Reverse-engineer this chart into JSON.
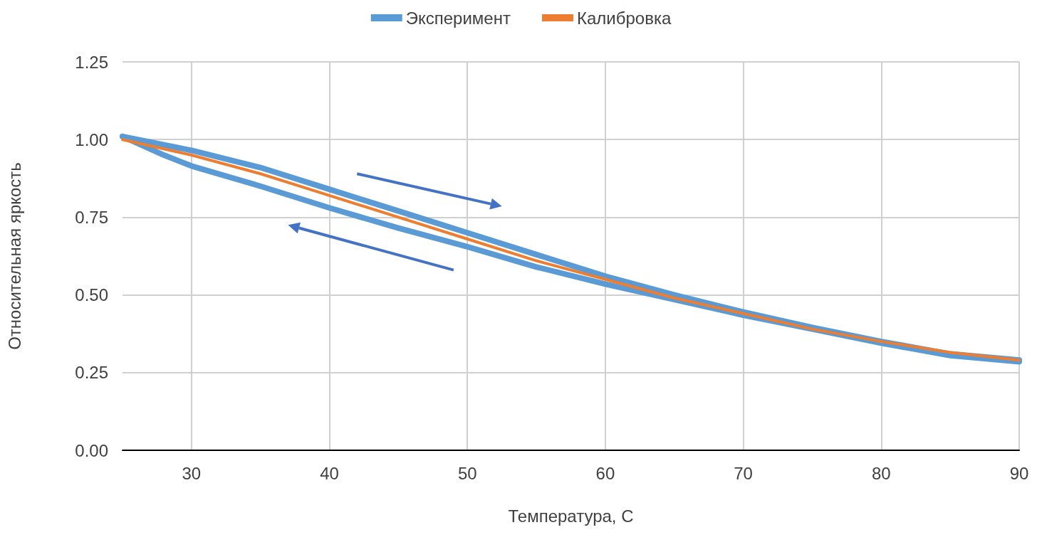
{
  "chart_data": {
    "type": "line",
    "xlabel": "Температура, С",
    "ylabel": "Относительная яркость",
    "xlim": [
      25,
      90
    ],
    "xticks": [
      30,
      40,
      50,
      60,
      70,
      80,
      90
    ],
    "ylim": [
      0,
      1.25
    ],
    "yticks": [
      {
        "value": 0,
        "label": "0.00"
      },
      {
        "value": 0.25,
        "label": "0.25"
      },
      {
        "value": 0.5,
        "label": "0.50"
      },
      {
        "value": 0.75,
        "label": "0.75"
      },
      {
        "value": 1,
        "label": "1.00"
      },
      {
        "value": 1.25,
        "label": "1.25"
      }
    ],
    "grid": true,
    "legend": "top",
    "marker": "none",
    "line_style": "solid",
    "series": [
      {
        "name": "Эксперимент",
        "color": "#5b9bd5",
        "x": [
          25,
          30,
          35,
          40,
          45,
          50,
          55,
          60,
          65,
          70,
          75,
          80,
          85,
          90
        ],
        "values": [
          1.01,
          0.965,
          0.91,
          0.84,
          0.77,
          0.7,
          0.63,
          0.56,
          0.5,
          0.445,
          0.395,
          0.35,
          0.31,
          0.29
        ]
      },
      {
        "color": "#5b9bd5",
        "x": [
          25,
          28,
          30,
          35,
          40,
          45,
          50,
          55,
          60,
          65,
          70,
          75,
          80,
          85,
          90
        ],
        "values": [
          1.01,
          0.95,
          0.915,
          0.85,
          0.78,
          0.715,
          0.655,
          0.59,
          0.535,
          0.485,
          0.435,
          0.39,
          0.345,
          0.305,
          0.285
        ]
      },
      {
        "name": "Калибровка",
        "color": "#ed7d31",
        "x": [
          25,
          30,
          35,
          40,
          45,
          50,
          55,
          60,
          65,
          70,
          75,
          80,
          85,
          90
        ],
        "values": [
          1.0,
          0.95,
          0.89,
          0.82,
          0.75,
          0.68,
          0.61,
          0.55,
          0.49,
          0.44,
          0.39,
          0.35,
          0.315,
          0.29
        ]
      }
    ]
  }
}
